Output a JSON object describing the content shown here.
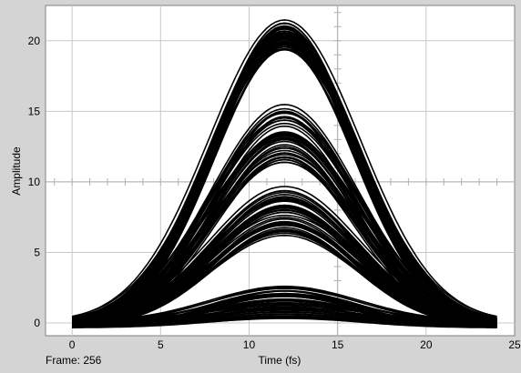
{
  "frame_label": "Frame: 256",
  "chart_data": {
    "type": "line",
    "xlabel": "Time (fs)",
    "ylabel": "Amplitude",
    "xlim": [
      -1.5,
      25
    ],
    "ylim": [
      -0.9,
      22.5
    ],
    "xticks": [
      0,
      5,
      10,
      15,
      20,
      25
    ],
    "yticks": [
      0,
      5,
      10,
      15,
      20
    ],
    "grid": true,
    "legend": "none",
    "line_color": "#000000",
    "peak_time": 12,
    "x_range": [
      0,
      24
    ],
    "series_groups": [
      {
        "peak_amplitude_range": [
          19.5,
          21.5
        ],
        "curve_count": 45
      },
      {
        "peak_amplitude_range": [
          11.5,
          15.5
        ],
        "curve_count": 40
      },
      {
        "peak_amplitude_range": [
          6.5,
          9.7
        ],
        "curve_count": 45
      },
      {
        "peak_amplitude_range": [
          0.5,
          2.6
        ],
        "curve_count": 45
      }
    ]
  }
}
